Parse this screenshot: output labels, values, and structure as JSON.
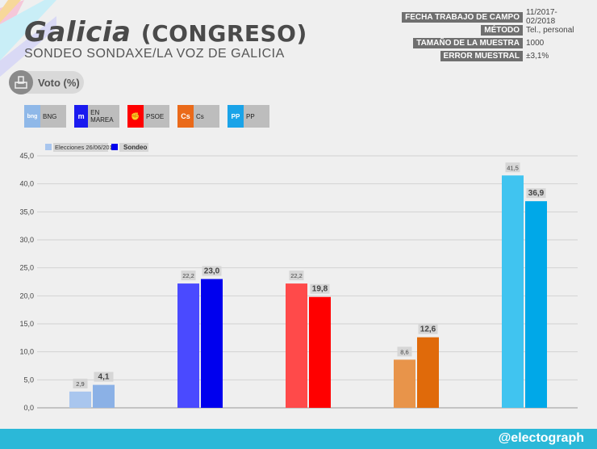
{
  "header": {
    "title": "Galicia",
    "title_suffix": "(CONGRESO)",
    "subtitle": "SONDEO SONDAXE/LA VOZ DE GALICIA"
  },
  "meta": [
    {
      "key": "FECHA TRABAJO DE CAMPO",
      "value": "11/2017-02/2018"
    },
    {
      "key": "MÉTODO",
      "value": "Tel., personal"
    },
    {
      "key": "TAMAÑO DE LA MUESTRA",
      "value": "1000"
    },
    {
      "key": "ERROR MUESTRAL",
      "value": "±3,1%"
    }
  ],
  "voto_label": "Voto (%)",
  "parties": [
    {
      "name": "BNG",
      "color": "#8fb8e8",
      "mark": "bng"
    },
    {
      "name": "EN MAREA",
      "color": "#1a1aef",
      "mark": "m"
    },
    {
      "name": "PSOE",
      "color": "#ff0000",
      "mark": "✊"
    },
    {
      "name": "Cs",
      "color": "#ea6a1a",
      "mark": "Cs"
    },
    {
      "name": "PP",
      "color": "#1aa3e8",
      "mark": "PP"
    }
  ],
  "footer": "@electograph",
  "chart_data": {
    "type": "bar",
    "categories": [
      "BNG",
      "EN MAREA",
      "PSOE",
      "Cs",
      "PP"
    ],
    "series": [
      {
        "name": "Elecciones 26/06/2016",
        "values": [
          2.9,
          22.2,
          22.2,
          8.6,
          41.5
        ],
        "colors": [
          "#a9c6ee",
          "#4a4aff",
          "#ff4a4a",
          "#e8944a",
          "#40c4f0"
        ]
      },
      {
        "name": "Sondeo",
        "values": [
          4.1,
          23.0,
          19.8,
          12.6,
          36.9
        ],
        "colors": [
          "#8bb1e6",
          "#0000ee",
          "#ff0000",
          "#e06a0a",
          "#00a8e8"
        ]
      }
    ],
    "value_labels": [
      [
        "2,9",
        "22,2",
        "22,2",
        "8,6",
        "41,5"
      ],
      [
        "4,1",
        "23,0",
        "19,8",
        "12,6",
        "36,9"
      ]
    ],
    "yticks": [
      "0,0",
      "5,0",
      "10,0",
      "15,0",
      "20,0",
      "25,0",
      "30,0",
      "35,0",
      "40,0",
      "45,0"
    ],
    "ylim": [
      0,
      45
    ],
    "grid": true,
    "legend": "top-left"
  }
}
